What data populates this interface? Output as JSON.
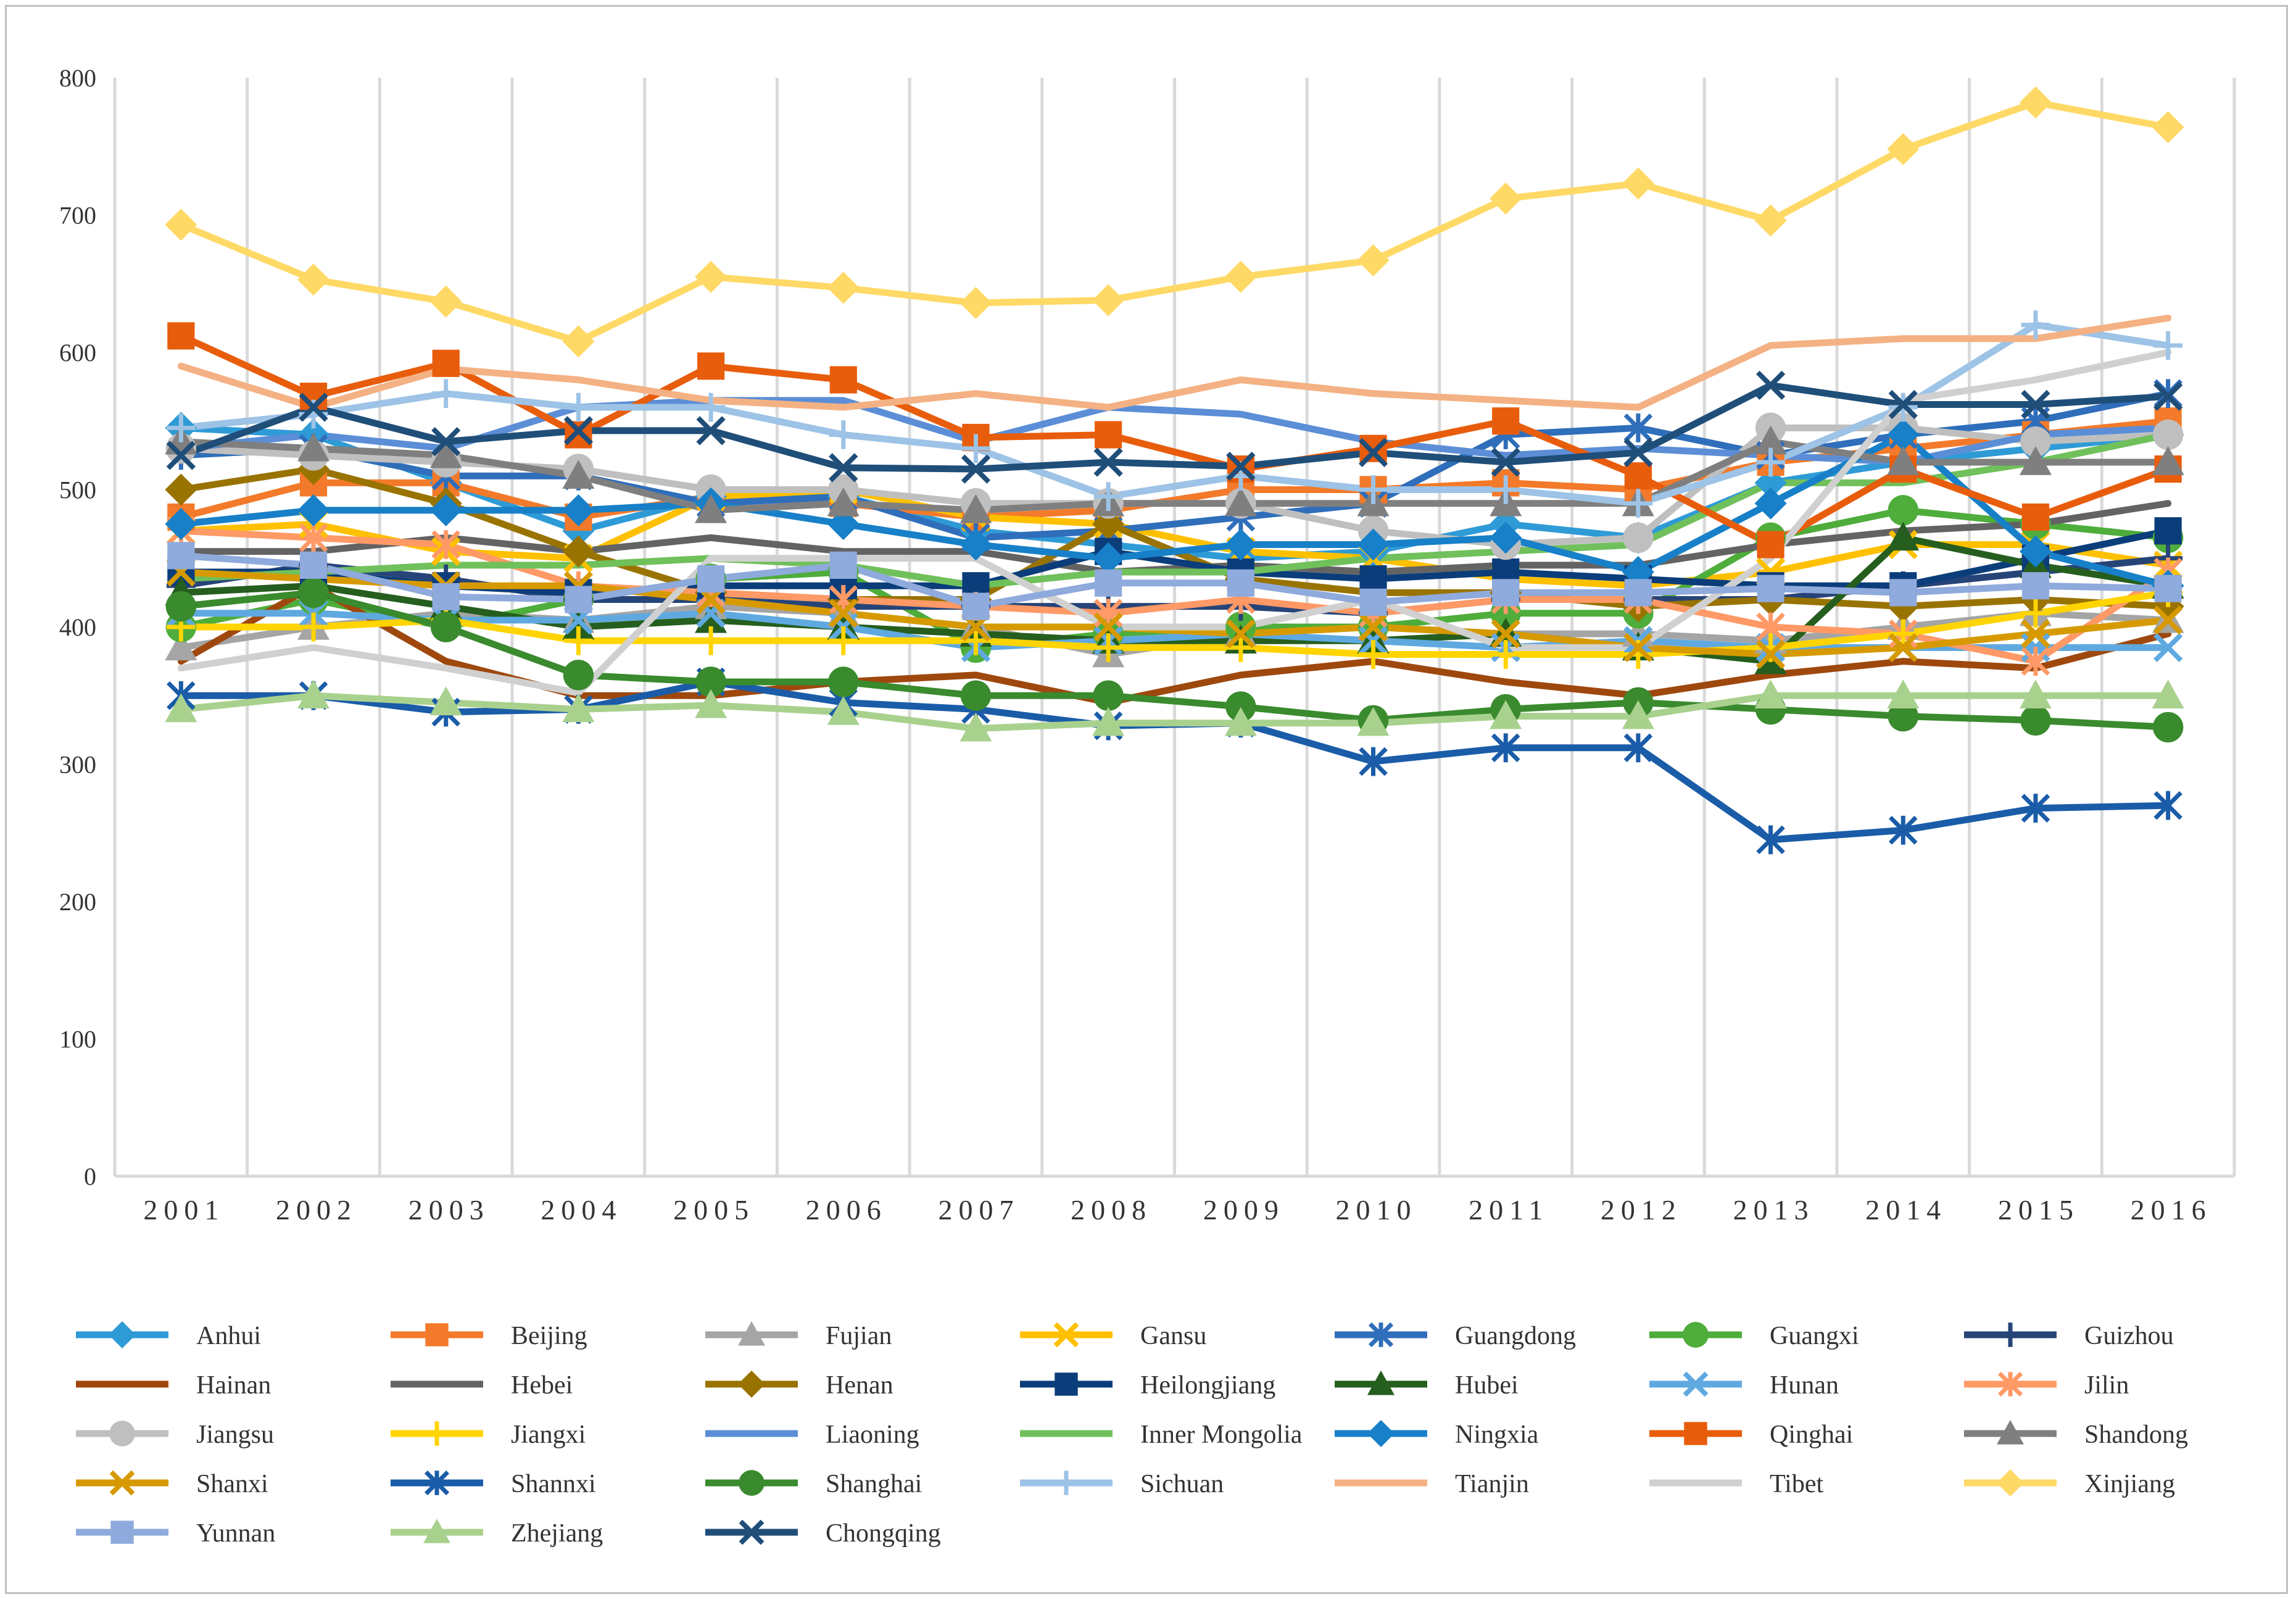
{
  "chart_data": {
    "type": "line",
    "title": "",
    "xlabel": "",
    "ylabel": "",
    "ylim": [
      0,
      800
    ],
    "y_ticks": [
      0,
      100,
      200,
      300,
      400,
      500,
      600,
      700,
      800
    ],
    "y_tick_labels": [
      "0",
      "100",
      "200",
      "300",
      "400",
      "500",
      "600",
      "700",
      "800"
    ],
    "grid": "vertical",
    "legend_position": "bottom",
    "categories": [
      "2001",
      "2002",
      "2003",
      "2004",
      "2005",
      "2006",
      "2007",
      "2008",
      "2009",
      "2010",
      "2011",
      "2012",
      "2013",
      "2014",
      "2015",
      "2016"
    ],
    "series": [
      {
        "name": "Anhui",
        "color": "#2E9BD6",
        "marker": "diamond",
        "values": [
          545,
          540,
          505,
          470,
          495,
          495,
          470,
          460,
          450,
          455,
          475,
          465,
          505,
          520,
          530,
          540
        ]
      },
      {
        "name": "Beijing",
        "color": "#F37A2A",
        "marker": "square",
        "values": [
          480,
          505,
          505,
          480,
          495,
          490,
          480,
          485,
          500,
          500,
          505,
          500,
          520,
          530,
          540,
          550
        ]
      },
      {
        "name": "Fujian",
        "color": "#A5A5A5",
        "marker": "triangle",
        "values": [
          385,
          400,
          410,
          405,
          415,
          410,
          400,
          380,
          395,
          400,
          395,
          395,
          390,
          400,
          410,
          405
        ]
      },
      {
        "name": "Gansu",
        "color": "#FFC000",
        "marker": "x",
        "values": [
          470,
          475,
          455,
          450,
          495,
          500,
          480,
          475,
          455,
          450,
          435,
          430,
          440,
          460,
          460,
          445
        ]
      },
      {
        "name": "Guangdong",
        "color": "#2F6EBA",
        "marker": "asterisk",
        "values": [
          525,
          530,
          510,
          510,
          490,
          495,
          465,
          470,
          480,
          490,
          540,
          545,
          525,
          540,
          550,
          570
        ]
      },
      {
        "name": "Guangxi",
        "color": "#4EAD3B",
        "marker": "circle",
        "values": [
          400,
          420,
          400,
          420,
          435,
          440,
          385,
          395,
          400,
          400,
          410,
          410,
          465,
          485,
          475,
          465
        ]
      },
      {
        "name": "Guizhou",
        "color": "#264478",
        "marker": "plus",
        "values": [
          430,
          445,
          435,
          420,
          420,
          415,
          415,
          415,
          415,
          410,
          420,
          420,
          420,
          430,
          440,
          450
        ]
      },
      {
        "name": "Hainan",
        "color": "#9E480E",
        "marker": "none",
        "values": [
          375,
          430,
          375,
          350,
          350,
          360,
          365,
          345,
          365,
          375,
          360,
          350,
          365,
          375,
          370,
          395
        ]
      },
      {
        "name": "Hebei",
        "color": "#636363",
        "marker": "none",
        "values": [
          455,
          455,
          465,
          455,
          465,
          455,
          455,
          440,
          445,
          440,
          445,
          445,
          460,
          470,
          475,
          490
        ]
      },
      {
        "name": "Henan",
        "color": "#997300",
        "marker": "diamond",
        "values": [
          500,
          515,
          490,
          455,
          425,
          420,
          420,
          475,
          435,
          425,
          425,
          415,
          420,
          415,
          420,
          415
        ]
      },
      {
        "name": "Heilongjiang",
        "color": "#0B3D7A",
        "marker": "square",
        "values": [
          440,
          440,
          430,
          425,
          430,
          430,
          430,
          455,
          440,
          435,
          440,
          435,
          430,
          430,
          450,
          470
        ]
      },
      {
        "name": "Hubei",
        "color": "#255E1E",
        "marker": "triangle",
        "values": [
          425,
          430,
          415,
          400,
          405,
          400,
          395,
          390,
          390,
          390,
          395,
          385,
          375,
          465,
          445,
          430
        ]
      },
      {
        "name": "Hunan",
        "color": "#5FA9E0",
        "marker": "x",
        "values": [
          410,
          410,
          405,
          405,
          410,
          400,
          385,
          390,
          395,
          390,
          385,
          390,
          385,
          385,
          385,
          385
        ]
      },
      {
        "name": "Jilin",
        "color": "#FF9966",
        "marker": "asterisk",
        "values": [
          470,
          465,
          460,
          430,
          425,
          420,
          415,
          410,
          420,
          410,
          420,
          420,
          400,
          395,
          375,
          440
        ]
      },
      {
        "name": "Jiangsu",
        "color": "#BFBFBF",
        "marker": "circle",
        "values": [
          530,
          525,
          520,
          515,
          500,
          500,
          490,
          490,
          490,
          470,
          460,
          465,
          545,
          545,
          535,
          540
        ]
      },
      {
        "name": "Jiangxi",
        "color": "#FFD400",
        "marker": "plus",
        "values": [
          400,
          400,
          405,
          390,
          390,
          390,
          390,
          385,
          385,
          380,
          380,
          380,
          385,
          395,
          410,
          425
        ]
      },
      {
        "name": "Liaoning",
        "color": "#5B8ED6",
        "marker": "none",
        "values": [
          530,
          540,
          530,
          560,
          565,
          565,
          535,
          560,
          555,
          535,
          525,
          530,
          525,
          520,
          540,
          545
        ]
      },
      {
        "name": "Inner Mongolia",
        "color": "#70C05B",
        "marker": "none",
        "values": [
          435,
          440,
          445,
          445,
          450,
          445,
          430,
          440,
          440,
          450,
          455,
          460,
          505,
          505,
          520,
          540
        ]
      },
      {
        "name": "Ningxia",
        "color": "#1780C8",
        "marker": "diamond",
        "values": [
          475,
          485,
          485,
          485,
          490,
          475,
          460,
          450,
          460,
          460,
          465,
          440,
          490,
          540,
          455,
          430
        ]
      },
      {
        "name": "Qinghai",
        "color": "#E85D0C",
        "marker": "square",
        "values": [
          612,
          568,
          592,
          540,
          590,
          580,
          538,
          540,
          515,
          530,
          550,
          510,
          460,
          515,
          480,
          515
        ]
      },
      {
        "name": "Shandong",
        "color": "#7F7F7F",
        "marker": "triangle",
        "values": [
          535,
          530,
          525,
          510,
          485,
          490,
          485,
          490,
          490,
          490,
          490,
          490,
          535,
          520,
          520,
          520
        ]
      },
      {
        "name": "Shanxi",
        "color": "#D69A00",
        "marker": "x",
        "values": [
          440,
          435,
          430,
          430,
          420,
          410,
          400,
          400,
          395,
          400,
          395,
          385,
          380,
          385,
          395,
          405
        ]
      },
      {
        "name": "Shannxi",
        "color": "#1A5CA8",
        "marker": "asterisk",
        "values": [
          350,
          350,
          338,
          340,
          360,
          345,
          340,
          328,
          330,
          302,
          312,
          312,
          245,
          252,
          268,
          270
        ]
      },
      {
        "name": "Shanghai",
        "color": "#3A8A2E",
        "marker": "circle",
        "values": [
          415,
          425,
          400,
          365,
          360,
          360,
          350,
          350,
          342,
          332,
          340,
          345,
          340,
          335,
          332,
          327
        ]
      },
      {
        "name": "Sichuan",
        "color": "#9DC3E6",
        "marker": "plus",
        "values": [
          545,
          555,
          570,
          560,
          560,
          540,
          530,
          495,
          510,
          500,
          500,
          490,
          520,
          560,
          620,
          605
        ]
      },
      {
        "name": "Tianjin",
        "color": "#F4B183",
        "marker": "none",
        "values": [
          590,
          560,
          588,
          580,
          565,
          560,
          570,
          560,
          580,
          570,
          565,
          560,
          605,
          610,
          610,
          625
        ]
      },
      {
        "name": "Tibet",
        "color": "#D0D0D0",
        "marker": "none",
        "values": [
          370,
          385,
          370,
          352,
          450,
          450,
          450,
          400,
          400,
          420,
          385,
          385,
          450,
          565,
          580,
          600
        ]
      },
      {
        "name": "Xinjiang",
        "color": "#FFD966",
        "marker": "diamond",
        "values": [
          693,
          653,
          637,
          608,
          655,
          647,
          636,
          638,
          655,
          667,
          712,
          723,
          696,
          748,
          782,
          764
        ]
      },
      {
        "name": "Yunnan",
        "color": "#8FAADC",
        "marker": "square",
        "values": [
          452,
          445,
          422,
          420,
          435,
          445,
          415,
          432,
          432,
          418,
          425,
          425,
          428,
          425,
          430,
          428
        ]
      },
      {
        "name": "Zhejiang",
        "color": "#A9D18E",
        "marker": "triangle",
        "values": [
          340,
          350,
          345,
          340,
          343,
          338,
          326,
          330,
          330,
          330,
          335,
          335,
          350,
          350,
          350,
          350
        ]
      },
      {
        "name": "Chongqing",
        "color": "#1F4E79",
        "marker": "x",
        "values": [
          525,
          560,
          535,
          543,
          543,
          516,
          515,
          520,
          517,
          527,
          520,
          527,
          576,
          562,
          562,
          568
        ]
      }
    ]
  }
}
